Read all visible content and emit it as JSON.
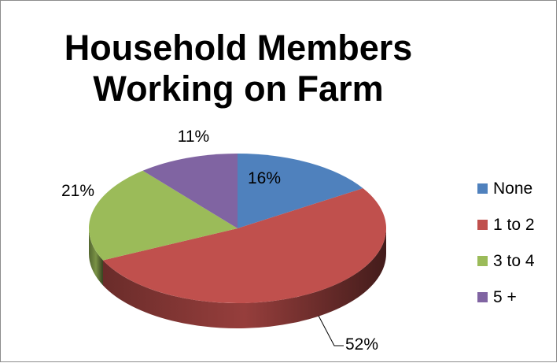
{
  "chart_data": {
    "type": "pie",
    "style": "3d",
    "title_lines": [
      "Household Members",
      "Working on Farm"
    ],
    "categories": [
      "None",
      "1 to 2",
      "3 to 4",
      "5 +"
    ],
    "values": [
      16,
      52,
      21,
      11
    ],
    "labels": [
      "16%",
      "52%",
      "21%",
      "11%"
    ],
    "colors": [
      "#4f81bd",
      "#c0504d",
      "#9bbb59",
      "#8064a2"
    ],
    "legend_position": "right"
  }
}
